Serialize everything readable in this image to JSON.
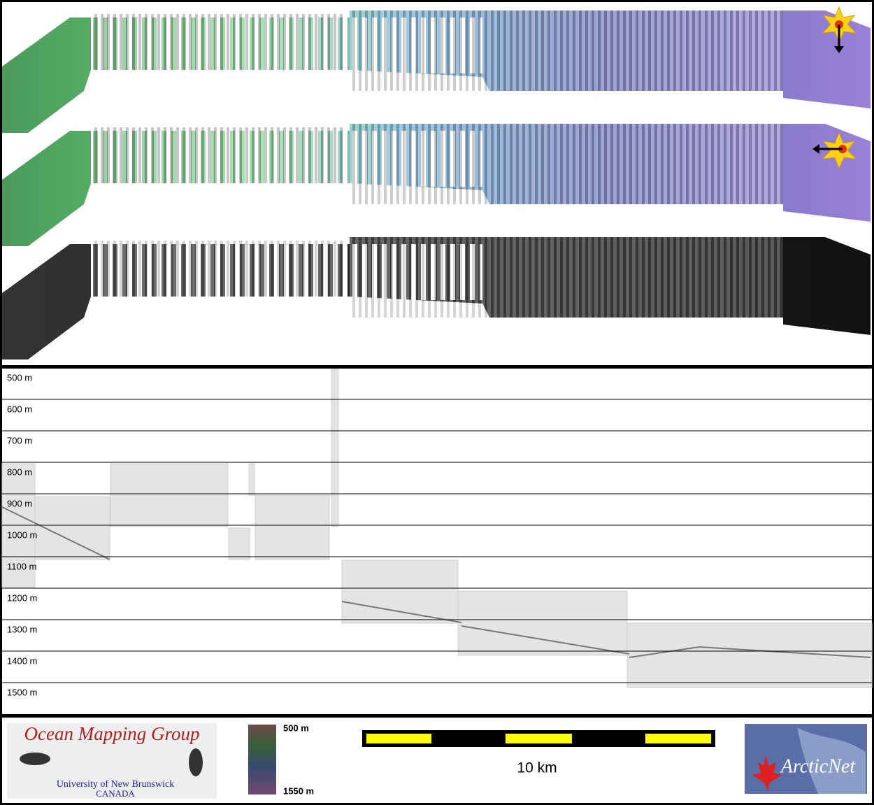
{
  "profile": {
    "depth_labels": [
      "500 m",
      "600 m",
      "700 m",
      "800 m",
      "900 m",
      "1000 m",
      "1100 m",
      "1200 m",
      "1300 m",
      "1400 m",
      "1500 m"
    ]
  },
  "footer": {
    "logo_title": "Ocean Mapping Group",
    "logo_university": "University of New Brunswick",
    "logo_country": "CANADA",
    "colorbar_top": "500 m",
    "colorbar_bottom": "1550 m",
    "scale_label": "10 km",
    "partner_logo": "ArcticNet"
  }
}
